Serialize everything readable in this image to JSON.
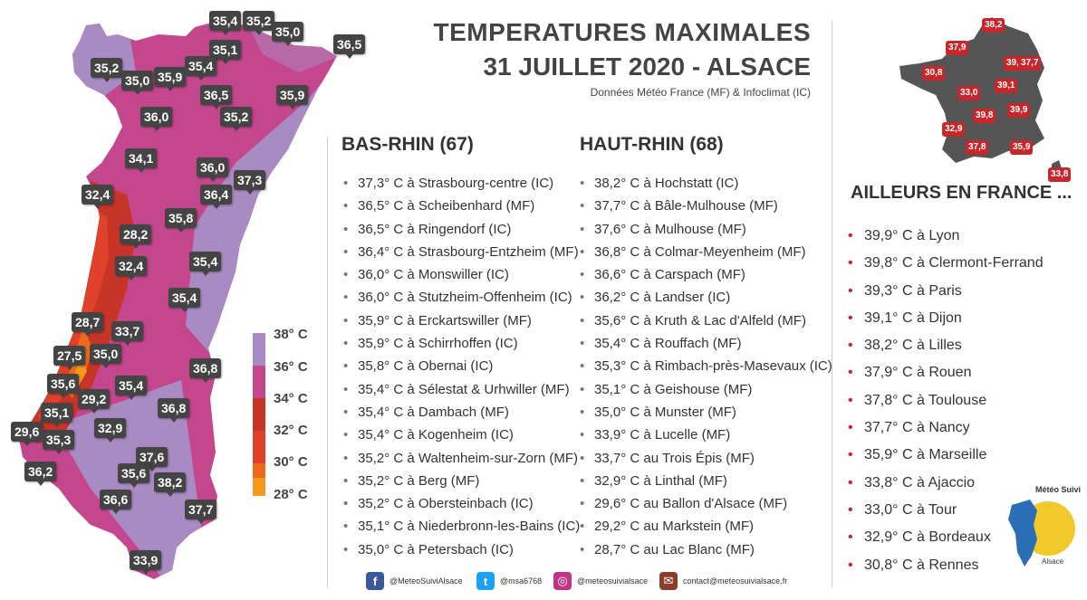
{
  "header": {
    "title_line1": "TEMPERATURES MAXIMALES",
    "title_line2": "31 JUILLET 2020 - ALSACE",
    "source": "Données Météo France (MF) & Infoclimat (IC)"
  },
  "bas_rhin": {
    "heading": "BAS-RHIN (67)",
    "items": [
      "37,3° C à Strasbourg-centre (IC)",
      "36,5° C à Scheibenhard (MF)",
      "36,5° C à Ringendorf (IC)",
      "36,4° C à Strasbourg-Entzheim (MF)",
      "36,0° C à Monswiller (IC)",
      "36,0° C à Stutzheim-Offenheim (IC)",
      "35,9° C à Erckartswiller (MF)",
      "35,9° C à Schirrhoffen (IC)",
      "35,8° C à Obernai (IC)",
      "35,4° C à Sélestat & Urhwiller (MF)",
      "35,4° C à Dambach (MF)",
      "35,4° C à Kogenheim (IC)",
      "35,2° C à Waltenheim-sur-Zorn (MF)",
      "35,2° C à Berg (MF)",
      "35,2° C à Obersteinbach (IC)",
      "35,1° C à Niederbronn-les-Bains (IC)",
      "35,0° C à Petersbach (IC)"
    ]
  },
  "haut_rhin": {
    "heading": "HAUT-RHIN (68)",
    "items": [
      "38,2° C à Hochstatt (IC)",
      "37,7° C à Bâle-Mulhouse (MF)",
      "37,6° C à Mulhouse (MF)",
      "36,8° C à Colmar-Meyenheim (MF)",
      "36,6° C à Carspach (MF)",
      "36,2° C à Landser (IC)",
      "35,6° C à Kruth & Lac d'Alfeld (MF)",
      "35,4° C à Rouffach (MF)",
      "35,3° C à Rimbach-près-Masevaux (IC)",
      "35,1° C à Geishouse (MF)",
      "35,0° C à Munster (MF)",
      "33,9° C à Lucelle (MF)",
      "33,7° C au Trois Épis (MF)",
      "32,9° C à Linthal (MF)",
      "29,6° C au Ballon d'Alsace (MF)",
      "29,2° C au Markstein (MF)",
      "28,7° C au Lac Blanc (MF)"
    ]
  },
  "france": {
    "heading": "AILLEURS EN FRANCE ...",
    "items": [
      "39,9° C à Lyon",
      "39,8° C à Clermont-Ferrand",
      "39,3° C à Paris",
      "39,1° C à Dijon",
      "38,2° C à Lilles",
      "37,9° C à Rouen",
      "37,8° C à Toulouse",
      "37,7° C à Nancy",
      "35,9° C à Marseille",
      "33,8° C à Ajaccio",
      "33,0° C à Tour",
      "32,9° C à Bordeaux",
      "30,8° C à Rennes"
    ],
    "map_values": [
      "38,2",
      "37,9",
      "39,3",
      "37,7",
      "30,8",
      "39,1",
      "33,0",
      "39,8",
      "39,9",
      "32,9",
      "37,8",
      "35,9",
      "33,8"
    ]
  },
  "alsace_map": {
    "values": [
      "35,4",
      "35,2",
      "35,0",
      "35,1",
      "36,5",
      "35,2",
      "35,0",
      "35,9",
      "35,4",
      "36,5",
      "35,9",
      "36,0",
      "35,2",
      "34,1",
      "36,0",
      "37,3",
      "32,4",
      "36,4",
      "35,8",
      "28,2",
      "32,4",
      "35,4",
      "35,4",
      "28,7",
      "33,7",
      "27,5",
      "35,0",
      "35,6",
      "35,4",
      "29,2",
      "36,8",
      "35,1",
      "36,8",
      "29,6",
      "35,3",
      "32,9",
      "37,6",
      "35,6",
      "38,2",
      "36,2",
      "36,6",
      "37,7",
      "33,9"
    ]
  },
  "legend": {
    "labels": [
      "38° C",
      "36° C",
      "34° C",
      "32° C",
      "30° C",
      "28° C"
    ],
    "colors": [
      "#a98bc4",
      "#c4468d",
      "#c63528",
      "#e0412a",
      "#ed6a1c",
      "#f39a1e"
    ]
  },
  "social": {
    "facebook": "@MeteoSuiviAlsace",
    "twitter": "@msa6768",
    "instagram": "@meteosuivialsace",
    "email": "contact@meteosuivialsace.fr"
  },
  "logo": {
    "text_top": "Météo Suivi",
    "text_bottom": "Alsace"
  }
}
